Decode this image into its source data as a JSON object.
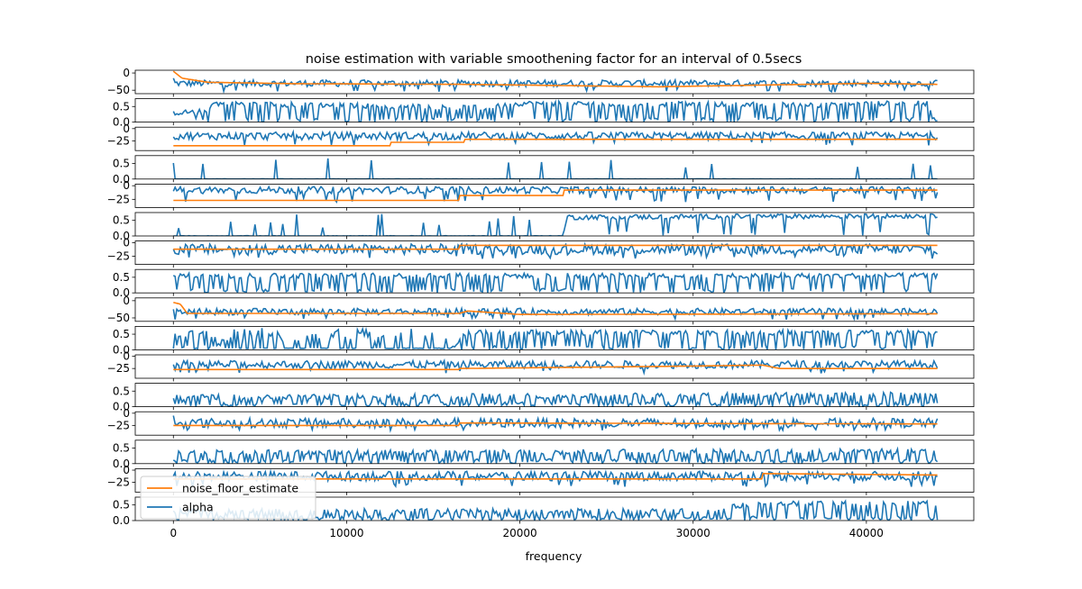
{
  "chart_data": {
    "type": "line",
    "title": "noise estimation with variable smoothening factor for an interval of 0.5secs",
    "xlabel": "frequency",
    "ylabel": "",
    "xlim": [
      -2200,
      46200
    ],
    "x_ticks": [
      0,
      10000,
      20000,
      30000,
      40000
    ],
    "x_tick_labels": [
      "0",
      "10000",
      "20000",
      "30000",
      "40000"
    ],
    "grid": false,
    "legend": {
      "placement": "lower-left",
      "entries": [
        {
          "name": "noise_floor_estimate",
          "color": "#ff7f0e"
        },
        {
          "name": "alpha",
          "color": "#1f77b4"
        }
      ]
    },
    "colors": {
      "noise_floor_estimate": "#ff7f0e",
      "alpha": "#1f77b4"
    },
    "panels": [
      {
        "kind": "signal",
        "ylim": [
          -60,
          8
        ],
        "yticks": [
          0,
          -50
        ],
        "ytick_labels": [
          "0",
          "−50"
        ],
        "signal": {
          "base": -30,
          "amp": 6,
          "start": -15,
          "dips": -55
        },
        "estimate": [
          [
            0,
            5
          ],
          [
            500,
            -15
          ],
          [
            2000,
            -27
          ],
          [
            7000,
            -31
          ],
          [
            17000,
            -33
          ],
          [
            28000,
            -40
          ],
          [
            40000,
            -30
          ],
          [
            44100,
            -33
          ]
        ]
      },
      {
        "kind": "alpha",
        "ylim": [
          0,
          0.75
        ],
        "yticks": [
          0.5,
          0.0
        ],
        "ytick_labels": [
          "0.5",
          "0.0"
        ],
        "alpha_profile": [
          [
            0,
            0.3
          ],
          [
            2000,
            0.35
          ],
          [
            2200,
            0.6
          ],
          [
            14000,
            0.5
          ],
          [
            18000,
            0.45
          ],
          [
            20000,
            0.6
          ],
          [
            38000,
            0.55
          ],
          [
            40000,
            0.6
          ],
          [
            43500,
            0.6
          ],
          [
            44000,
            0.05
          ]
        ],
        "spikiness": 0.35
      },
      {
        "kind": "signal",
        "ylim": [
          -45,
          3
        ],
        "yticks": [
          0,
          -25
        ],
        "ytick_labels": [
          "0",
          "−25"
        ],
        "signal": {
          "base": -15,
          "amp": 5,
          "start": -17,
          "dips": -35
        },
        "estimate": [
          [
            0,
            -35
          ],
          [
            12500,
            -35
          ],
          [
            12501,
            -28
          ],
          [
            16800,
            -28
          ],
          [
            16801,
            -22
          ],
          [
            44100,
            -22
          ]
        ]
      },
      {
        "kind": "alpha",
        "ylim": [
          0,
          0.75
        ],
        "yticks": [
          0.5,
          0.0
        ],
        "ytick_labels": [
          "0.5",
          "0.0"
        ],
        "alpha_profile": [
          [
            0,
            0.0
          ],
          [
            44100,
            0.0
          ]
        ],
        "spikiness": 0.04
      },
      {
        "kind": "signal",
        "ylim": [
          -40,
          3
        ],
        "yticks": [
          0,
          -25
        ],
        "ytick_labels": [
          "0",
          "−25"
        ],
        "signal": {
          "base": -8,
          "amp": 4,
          "start": -10,
          "dips": -30
        },
        "estimate": [
          [
            0,
            -27
          ],
          [
            16500,
            -27
          ],
          [
            16501,
            -18
          ],
          [
            22500,
            -18
          ],
          [
            22501,
            -8
          ],
          [
            44100,
            -8
          ]
        ]
      },
      {
        "kind": "alpha",
        "ylim": [
          0,
          0.75
        ],
        "yticks": [
          0.5,
          0.0
        ],
        "ytick_labels": [
          "0.5",
          "0.0"
        ],
        "alpha_profile": [
          [
            0,
            0.0
          ],
          [
            22500,
            0.0
          ],
          [
            22700,
            0.6
          ],
          [
            44100,
            0.65
          ]
        ],
        "spikiness": 0.05
      },
      {
        "kind": "signal",
        "ylim": [
          -40,
          3
        ],
        "yticks": [
          0,
          -25
        ],
        "ytick_labels": [
          "0",
          "−25"
        ],
        "signal": {
          "base": -12,
          "amp": 6,
          "start": -12,
          "dips": -30
        },
        "estimate": [
          [
            0,
            -12
          ],
          [
            16500,
            -12
          ],
          [
            16501,
            -5
          ],
          [
            44100,
            -5
          ]
        ]
      },
      {
        "kind": "alpha",
        "ylim": [
          0,
          0.75
        ],
        "yticks": [
          0.5,
          0.0
        ],
        "ytick_labels": [
          "0.5",
          "0.0"
        ],
        "alpha_profile": [
          [
            0,
            0.55
          ],
          [
            44100,
            0.55
          ]
        ],
        "spikiness": 0.3
      },
      {
        "kind": "signal",
        "ylim": [
          -60,
          8
        ],
        "yticks": [
          0,
          -50
        ],
        "ytick_labels": [
          "0",
          "−50"
        ],
        "signal": {
          "base": -32,
          "amp": 6,
          "start": -25,
          "dips": -55
        },
        "estimate": [
          [
            0,
            -5
          ],
          [
            400,
            -10
          ],
          [
            800,
            -37
          ],
          [
            2000,
            -37
          ],
          [
            16500,
            -37
          ],
          [
            17000,
            -30
          ],
          [
            20000,
            -40
          ],
          [
            44100,
            -38
          ]
        ]
      },
      {
        "kind": "alpha",
        "ylim": [
          0,
          0.75
        ],
        "yticks": [
          0.5,
          0.0
        ],
        "ytick_labels": [
          "0.5",
          "0.0"
        ],
        "alpha_profile": [
          [
            0,
            0.45
          ],
          [
            2000,
            0.6
          ],
          [
            3000,
            0.05
          ],
          [
            16000,
            0.05
          ],
          [
            17000,
            0.55
          ],
          [
            44100,
            0.55
          ]
        ],
        "spikiness": 0.35
      },
      {
        "kind": "signal",
        "ylim": [
          -45,
          3
        ],
        "yticks": [
          0,
          -25
        ],
        "ytick_labels": [
          "0",
          "−25"
        ],
        "signal": {
          "base": -17,
          "amp": 5,
          "start": -17,
          "dips": -35
        },
        "estimate": [
          [
            0,
            -27
          ],
          [
            16500,
            -27
          ],
          [
            16501,
            -25
          ],
          [
            30000,
            -20
          ],
          [
            34000,
            -18
          ],
          [
            35000,
            -25
          ],
          [
            44100,
            -25
          ]
        ]
      },
      {
        "kind": "alpha",
        "ylim": [
          0,
          0.75
        ],
        "yticks": [
          0.5,
          0.0
        ],
        "ytick_labels": [
          "0.5",
          "0.0"
        ],
        "alpha_profile": [
          [
            0,
            0.3
          ],
          [
            44100,
            0.4
          ]
        ],
        "spikiness": 0.45
      },
      {
        "kind": "signal",
        "ylim": [
          -45,
          3
        ],
        "yticks": [
          0,
          -25
        ],
        "ytick_labels": [
          "0",
          "−25"
        ],
        "signal": {
          "base": -20,
          "amp": 6,
          "start": -5,
          "dips": -35
        },
        "estimate": [
          [
            0,
            -25
          ],
          [
            16500,
            -25
          ],
          [
            16501,
            -20
          ],
          [
            44100,
            -22
          ]
        ]
      },
      {
        "kind": "alpha",
        "ylim": [
          0,
          0.75
        ],
        "yticks": [
          0.5,
          0.0
        ],
        "ytick_labels": [
          "0.5",
          "0.0"
        ],
        "alpha_profile": [
          [
            0,
            0.35
          ],
          [
            44100,
            0.4
          ]
        ],
        "spikiness": 0.5
      },
      {
        "kind": "signal",
        "ylim": [
          -45,
          3
        ],
        "yticks": [
          0,
          -25
        ],
        "ytick_labels": [
          "0",
          "−25"
        ],
        "signal": {
          "base": -12,
          "amp": 6,
          "start": -12,
          "dips": -35
        },
        "estimate": [
          [
            0,
            -18
          ],
          [
            34000,
            -18
          ],
          [
            34001,
            -7
          ],
          [
            44100,
            -10
          ]
        ]
      },
      {
        "kind": "alpha",
        "ylim": [
          0,
          0.75
        ],
        "yticks": [
          0.5,
          0.0
        ],
        "ytick_labels": [
          "0.5",
          "0.0"
        ],
        "alpha_profile": [
          [
            0,
            0.3
          ],
          [
            30000,
            0.3
          ],
          [
            34000,
            0.55
          ],
          [
            44100,
            0.55
          ]
        ],
        "spikiness": 0.5
      }
    ]
  }
}
